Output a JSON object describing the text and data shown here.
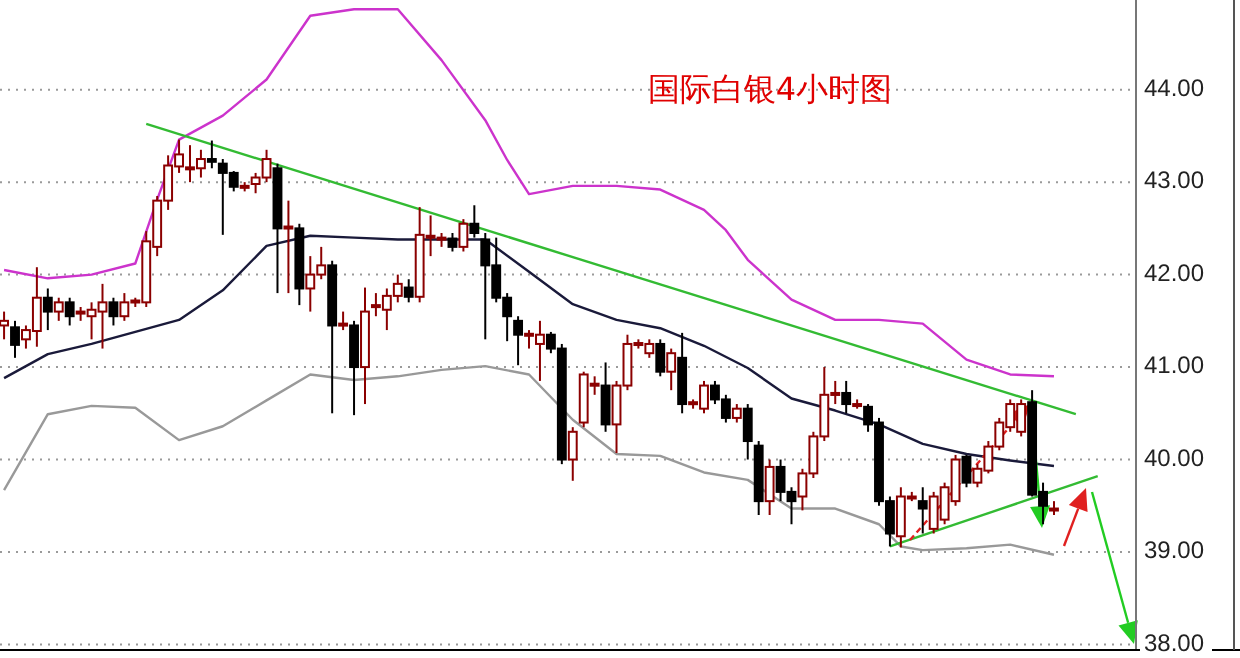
{
  "chart_data": {
    "type": "candlestick",
    "title": "国际白银4小时图",
    "categories": [
      null,
      null,
      null,
      null,
      null,
      null,
      null,
      null,
      null,
      null,
      null,
      null,
      null,
      null,
      null,
      null,
      null,
      null,
      null,
      null,
      null,
      null,
      null,
      null,
      null,
      null,
      null,
      null,
      null,
      null,
      null,
      null,
      null,
      null,
      null,
      null,
      null,
      null,
      null,
      null,
      null,
      null,
      null,
      null,
      null,
      null,
      null,
      null,
      null,
      null,
      null,
      null,
      null,
      null,
      null,
      null,
      null,
      null,
      null,
      null,
      null,
      null,
      null,
      null,
      null,
      null,
      null,
      null,
      null,
      null,
      null,
      null,
      null,
      null,
      null,
      null,
      null,
      null,
      null,
      null,
      null,
      null,
      null,
      null,
      null,
      null,
      null,
      null,
      null,
      null,
      null,
      null,
      null,
      null,
      null,
      null,
      null,
      null,
      null,
      null,
      null,
      null,
      null,
      null
    ],
    "ohlc": [
      [
        41.45,
        41.6,
        41.3,
        41.5
      ],
      [
        41.43,
        41.5,
        41.1,
        41.24
      ],
      [
        41.3,
        41.45,
        41.2,
        41.4
      ],
      [
        41.39,
        42.08,
        41.22,
        41.75
      ],
      [
        41.75,
        41.85,
        41.4,
        41.6
      ],
      [
        41.6,
        41.75,
        41.5,
        41.7
      ],
      [
        41.7,
        41.75,
        41.45,
        41.55
      ],
      [
        41.58,
        41.65,
        41.5,
        41.6
      ],
      [
        41.55,
        41.7,
        41.3,
        41.62
      ],
      [
        41.6,
        41.9,
        41.2,
        41.7
      ],
      [
        41.7,
        41.75,
        41.45,
        41.55
      ],
      [
        41.55,
        41.8,
        41.5,
        41.7
      ],
      [
        41.7,
        41.75,
        41.65,
        41.72
      ],
      [
        41.7,
        42.47,
        41.65,
        42.36
      ],
      [
        42.3,
        42.85,
        42.2,
        42.8
      ],
      [
        42.8,
        43.29,
        42.7,
        43.18
      ],
      [
        43.17,
        43.46,
        43.1,
        43.3
      ],
      [
        43.16,
        43.4,
        43.0,
        43.16
      ],
      [
        43.15,
        43.35,
        43.05,
        43.25
      ],
      [
        43.25,
        43.45,
        43.15,
        43.22
      ],
      [
        43.2,
        43.25,
        42.43,
        43.1
      ],
      [
        43.1,
        43.12,
        42.9,
        42.95
      ],
      [
        42.95,
        43.0,
        42.9,
        42.96
      ],
      [
        42.98,
        43.1,
        42.88,
        43.05
      ],
      [
        43.05,
        43.35,
        43.0,
        43.25
      ],
      [
        43.15,
        43.2,
        41.8,
        42.5
      ],
      [
        42.5,
        42.8,
        41.8,
        42.52
      ],
      [
        42.5,
        42.55,
        41.67,
        41.85
      ],
      [
        41.85,
        42.2,
        41.6,
        42.0
      ],
      [
        42.0,
        42.3,
        41.95,
        42.1
      ],
      [
        42.1,
        42.15,
        40.5,
        41.45
      ],
      [
        41.45,
        41.6,
        41.4,
        41.47
      ],
      [
        41.45,
        41.5,
        40.48,
        41.0
      ],
      [
        41.0,
        41.86,
        40.6,
        41.6
      ],
      [
        41.65,
        41.8,
        41.55,
        41.67
      ],
      [
        41.62,
        41.85,
        41.4,
        41.77
      ],
      [
        41.77,
        42.0,
        41.7,
        41.9
      ],
      [
        41.86,
        41.95,
        41.7,
        41.76
      ],
      [
        41.76,
        42.73,
        41.7,
        42.43
      ],
      [
        42.4,
        42.64,
        42.2,
        42.42
      ],
      [
        42.39,
        42.45,
        42.3,
        42.4
      ],
      [
        42.39,
        42.45,
        42.25,
        42.3
      ],
      [
        42.3,
        42.6,
        42.25,
        42.55
      ],
      [
        42.55,
        42.75,
        42.4,
        42.45
      ],
      [
        42.38,
        42.45,
        41.3,
        42.1
      ],
      [
        42.1,
        42.4,
        41.7,
        41.75
      ],
      [
        41.75,
        41.8,
        41.28,
        41.55
      ],
      [
        41.5,
        41.55,
        41.02,
        41.35
      ],
      [
        41.35,
        41.4,
        41.2,
        41.36
      ],
      [
        41.25,
        41.5,
        40.85,
        41.35
      ],
      [
        41.35,
        41.38,
        41.15,
        41.2
      ],
      [
        41.2,
        41.25,
        39.95,
        40.0
      ],
      [
        40.0,
        40.35,
        39.77,
        40.3
      ],
      [
        40.4,
        40.95,
        40.35,
        40.92
      ],
      [
        40.8,
        40.9,
        40.7,
        40.82
      ],
      [
        40.8,
        41.05,
        40.3,
        40.38
      ],
      [
        40.38,
        40.85,
        40.07,
        40.8
      ],
      [
        40.8,
        41.35,
        40.75,
        41.25
      ],
      [
        41.25,
        41.3,
        41.2,
        41.26
      ],
      [
        41.15,
        41.3,
        41.1,
        41.25
      ],
      [
        41.25,
        41.3,
        40.9,
        40.95
      ],
      [
        40.95,
        41.2,
        40.75,
        41.15
      ],
      [
        41.1,
        41.37,
        40.5,
        40.6
      ],
      [
        40.6,
        40.65,
        40.55,
        40.62
      ],
      [
        40.55,
        40.85,
        40.5,
        40.8
      ],
      [
        40.8,
        40.85,
        40.6,
        40.65
      ],
      [
        40.65,
        40.7,
        40.4,
        40.45
      ],
      [
        40.45,
        40.6,
        40.4,
        40.55
      ],
      [
        40.55,
        40.6,
        40.0,
        40.2
      ],
      [
        40.15,
        40.2,
        39.4,
        39.55
      ],
      [
        39.55,
        40.0,
        39.4,
        39.92
      ],
      [
        39.92,
        40.0,
        39.55,
        39.65
      ],
      [
        39.65,
        39.7,
        39.3,
        39.55
      ],
      [
        39.6,
        39.9,
        39.45,
        39.85
      ],
      [
        39.85,
        40.3,
        39.8,
        40.25
      ],
      [
        40.25,
        41.0,
        40.2,
        40.7
      ],
      [
        40.7,
        40.85,
        40.6,
        40.72
      ],
      [
        40.72,
        40.85,
        40.5,
        40.6
      ],
      [
        40.6,
        40.65,
        40.55,
        40.6
      ],
      [
        40.57,
        40.6,
        40.3,
        40.38
      ],
      [
        40.4,
        40.45,
        39.5,
        39.55
      ],
      [
        39.55,
        39.6,
        39.06,
        39.2
      ],
      [
        39.17,
        39.7,
        39.05,
        39.6
      ],
      [
        39.6,
        39.65,
        39.55,
        39.6
      ],
      [
        39.55,
        39.7,
        39.2,
        39.47
      ],
      [
        39.25,
        39.65,
        39.2,
        39.6
      ],
      [
        39.35,
        39.75,
        39.3,
        39.7
      ],
      [
        39.55,
        40.05,
        39.5,
        40.0
      ],
      [
        40.03,
        40.05,
        39.7,
        39.75
      ],
      [
        39.75,
        39.95,
        39.7,
        39.9
      ],
      [
        39.88,
        40.2,
        39.85,
        40.14
      ],
      [
        40.14,
        40.45,
        40.1,
        40.4
      ],
      [
        40.35,
        40.65,
        40.3,
        40.6
      ],
      [
        40.3,
        40.65,
        40.25,
        40.6
      ],
      [
        40.62,
        40.75,
        39.6,
        39.62
      ],
      [
        39.65,
        39.75,
        39.3,
        39.5
      ],
      [
        39.47,
        39.55,
        39.4,
        39.47
      ],
      null,
      null,
      null,
      null,
      null,
      null,
      null
    ],
    "series": [
      {
        "type": "line",
        "color": "#cc33cc",
        "values": [
          42.05,
          null,
          null,
          null,
          41.96,
          null,
          null,
          null,
          42.0,
          null,
          null,
          null,
          42.12,
          null,
          42.81,
          null,
          43.46,
          null,
          null,
          null,
          43.72,
          null,
          null,
          null,
          44.11,
          null,
          null,
          null,
          44.8,
          null,
          null,
          null,
          44.87,
          null,
          null,
          null,
          44.87,
          null,
          null,
          null,
          44.32,
          null,
          null,
          null,
          43.67,
          null,
          43.24,
          null,
          42.87,
          null,
          null,
          null,
          42.96,
          null,
          null,
          null,
          42.96,
          null,
          null,
          null,
          42.92,
          null,
          null,
          null,
          42.7,
          null,
          42.48,
          null,
          42.16,
          null,
          null,
          null,
          41.73,
          null,
          null,
          null,
          41.51,
          null,
          null,
          null,
          41.51,
          null,
          null,
          null,
          41.47,
          null,
          null,
          null,
          41.08,
          null,
          null,
          null,
          40.92,
          null,
          null,
          null,
          40.9,
          null,
          null,
          null,
          null,
          null,
          null,
          null
        ]
      },
      {
        "type": "line",
        "color": "#1a1a3a",
        "values": [
          40.88,
          null,
          null,
          null,
          41.14,
          null,
          null,
          null,
          41.25,
          null,
          null,
          null,
          41.38,
          null,
          null,
          null,
          41.51,
          null,
          null,
          null,
          41.83,
          null,
          null,
          null,
          42.31,
          null,
          null,
          null,
          42.42,
          null,
          null,
          null,
          42.4,
          null,
          null,
          null,
          42.38,
          null,
          null,
          null,
          42.38,
          null,
          null,
          null,
          42.38,
          null,
          null,
          null,
          42.03,
          null,
          null,
          null,
          41.68,
          null,
          null,
          null,
          41.51,
          null,
          null,
          null,
          41.42,
          null,
          null,
          null,
          41.23,
          null,
          null,
          null,
          40.99,
          null,
          null,
          null,
          40.66,
          null,
          null,
          null,
          40.53,
          null,
          null,
          null,
          40.38,
          null,
          null,
          null,
          40.17,
          null,
          null,
          null,
          40.06,
          null,
          null,
          null,
          39.99,
          null,
          null,
          null,
          39.93,
          null,
          null,
          null,
          null,
          null,
          null,
          null
        ]
      },
      {
        "type": "line",
        "color": "#999999",
        "values": [
          39.67,
          null,
          null,
          null,
          40.49,
          null,
          null,
          null,
          40.58,
          null,
          null,
          null,
          40.56,
          null,
          null,
          null,
          40.21,
          null,
          null,
          null,
          40.36,
          null,
          null,
          null,
          40.64,
          null,
          null,
          null,
          40.92,
          null,
          null,
          null,
          40.86,
          null,
          null,
          null,
          40.9,
          null,
          null,
          null,
          40.97,
          null,
          null,
          null,
          41.01,
          null,
          null,
          null,
          40.92,
          null,
          null,
          null,
          40.43,
          null,
          null,
          null,
          40.06,
          null,
          null,
          null,
          40.04,
          null,
          null,
          null,
          39.86,
          null,
          null,
          null,
          39.78,
          null,
          null,
          null,
          39.47,
          null,
          null,
          null,
          39.47,
          null,
          null,
          null,
          39.3,
          null,
          39.06,
          null,
          39.02,
          null,
          null,
          null,
          39.04,
          null,
          null,
          null,
          39.08,
          null,
          null,
          null,
          38.97,
          null,
          null,
          null,
          null,
          null,
          null,
          null
        ]
      },
      {
        "type": "line",
        "color": "#33bb33",
        "values": [
          null,
          null,
          null,
          null,
          null,
          null,
          null,
          null,
          null,
          null,
          null,
          null,
          null,
          43.63,
          null,
          null,
          null,
          null,
          null,
          null,
          null,
          null,
          null,
          null,
          null,
          null,
          null,
          null,
          null,
          null,
          null,
          null,
          null,
          null,
          null,
          null,
          null,
          null,
          null,
          null,
          null,
          null,
          null,
          null,
          null,
          null,
          null,
          null,
          null,
          null,
          null,
          null,
          null,
          null,
          null,
          null,
          null,
          null,
          null,
          null,
          null,
          null,
          null,
          null,
          null,
          null,
          null,
          null,
          null,
          null,
          null,
          null,
          null,
          null,
          null,
          null,
          null,
          null,
          null,
          null,
          null,
          null,
          null,
          null,
          null,
          null,
          null,
          null,
          null,
          null,
          null,
          null,
          null,
          null,
          null,
          null,
          null,
          null,
          40.49,
          null,
          null,
          null,
          null,
          null
        ]
      },
      {
        "type": "line",
        "color": "#33bb33",
        "values": [
          null,
          null,
          null,
          null,
          null,
          null,
          null,
          null,
          null,
          null,
          null,
          null,
          null,
          null,
          null,
          null,
          null,
          null,
          null,
          null,
          null,
          null,
          null,
          null,
          null,
          null,
          null,
          null,
          null,
          null,
          null,
          null,
          null,
          null,
          null,
          null,
          null,
          null,
          null,
          null,
          null,
          null,
          null,
          null,
          null,
          null,
          null,
          null,
          null,
          null,
          null,
          null,
          null,
          null,
          null,
          null,
          null,
          null,
          null,
          null,
          null,
          null,
          null,
          null,
          null,
          null,
          null,
          null,
          null,
          null,
          null,
          null,
          null,
          null,
          null,
          null,
          null,
          null,
          null,
          null,
          null,
          39.06,
          null,
          null,
          null,
          null,
          null,
          null,
          null,
          null,
          null,
          null,
          null,
          null,
          null,
          null,
          null,
          null,
          null,
          null,
          39.82,
          null,
          null,
          null
        ]
      }
    ],
    "ylim": [
      37.94,
      44.97
    ],
    "yticks": [
      {
        "value": 38,
        "label": "38.00"
      },
      {
        "value": 39,
        "label": "39.00"
      },
      {
        "value": 40,
        "label": "40.00"
      },
      {
        "value": 41,
        "label": "41.00"
      },
      {
        "value": 42,
        "label": "42.00"
      },
      {
        "value": 43,
        "label": "43.00"
      },
      {
        "value": 44,
        "label": "44.00"
      }
    ],
    "grid": "y"
  }
}
